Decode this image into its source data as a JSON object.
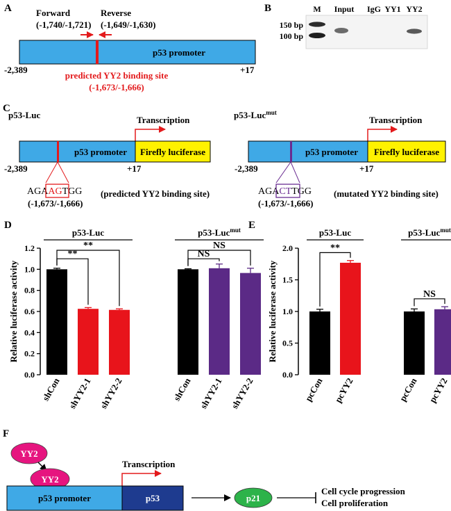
{
  "panels": {
    "A": {
      "letter": "A",
      "forward": "Forward",
      "forward_range": "(-1,740/-1,721)",
      "reverse": "Reverse",
      "reverse_range": "(-1,649/-1,630)",
      "promoter": "p53 promoter",
      "left_pos": "-2,389",
      "right_pos": "+17",
      "site_label": "predicted YY2 binding site",
      "site_range": "(-1,673/-1,666)"
    },
    "B": {
      "letter": "B",
      "ladder": [
        "150 bp",
        "100 bp"
      ],
      "lanes": [
        "M",
        "Input",
        "IgG",
        "YY1",
        "YY2"
      ]
    },
    "C": {
      "letter": "C",
      "left_title": "p53-Luc",
      "right_title_base": "p53-Luc",
      "right_title_sup": "mut",
      "transcription": "Transcription",
      "promoter": "p53 promoter",
      "luciferase": "Firefly luciferase",
      "left_pos": "-2,389",
      "right_pos": "+17",
      "seq_wt_pre": "AGA",
      "seq_wt_box": "AG",
      "seq_wt_post": "TGG",
      "seq_mut_pre": "AGA",
      "seq_mut_box": "CT",
      "seq_mut_post": "TGG",
      "range": "(-1,673/-1,666)",
      "note_wt": "(predicted YY2 binding site)",
      "note_mut": "(mutated YY2 binding site)"
    },
    "D": {
      "letter": "D"
    },
    "E": {
      "letter": "E"
    },
    "F": {
      "letter": "F",
      "yy2": "YY2",
      "transcription": "Transcription",
      "promoter": "p53 promoter",
      "p53": "p53",
      "p21": "p21",
      "outcome1": "Cell cycle progression",
      "outcome2": "Cell proliferation"
    }
  },
  "colors": {
    "promoter": "#3fa9e6",
    "luciferase": "#fff200",
    "site_red": "#e31a1c",
    "site_purple": "#6a2c91",
    "bar_black": "#000000",
    "bar_red": "#e8141b",
    "bar_purple": "#5b2a86",
    "yy2_oval": "#e6157f",
    "p53_box": "#1e3b8f",
    "p21_oval": "#2db34a"
  },
  "chart_data": [
    {
      "type": "bar",
      "ylabel": "Relative luciferase activity",
      "ylim": [
        0.0,
        1.2
      ],
      "yticks": [
        "0.0",
        "0.2",
        "0.4",
        "0.6",
        "0.8",
        "1.0",
        "1.2"
      ],
      "categories": [
        "shCon",
        "shYY2-1",
        "shYY2-2",
        "shCon",
        "shYY2-1",
        "shYY2-2"
      ],
      "values": [
        1.0,
        0.625,
        0.615,
        1.0,
        1.01,
        0.965
      ],
      "errors": [
        0.01,
        0.012,
        0.01,
        0.005,
        0.04,
        0.045
      ],
      "bar_colors": [
        "#000000",
        "#e8141b",
        "#e8141b",
        "#000000",
        "#5b2a86",
        "#5b2a86"
      ],
      "groups": [
        {
          "label_base": "p53-Luc",
          "label_sup": "",
          "span": [
            0,
            2
          ]
        },
        {
          "label_base": "p53-Luc",
          "label_sup": "mut",
          "span": [
            3,
            5
          ]
        }
      ],
      "significance": [
        {
          "from": 0,
          "to": 1,
          "label": "**",
          "y": 1.1
        },
        {
          "from": 0,
          "to": 2,
          "label": "**",
          "y": 1.18
        },
        {
          "from": 3,
          "to": 4,
          "label": "NS",
          "y": 1.1
        },
        {
          "from": 3,
          "to": 5,
          "label": "NS",
          "y": 1.18
        }
      ]
    },
    {
      "type": "bar",
      "ylabel": "Relative luciferase activity",
      "ylim": [
        0.0,
        2.0
      ],
      "yticks": [
        "0.0",
        "0.5",
        "1.0",
        "1.5",
        "2.0"
      ],
      "categories": [
        "pcCon",
        "pcYY2",
        "pcCon",
        "pcYY2"
      ],
      "values": [
        1.0,
        1.77,
        1.0,
        1.035
      ],
      "errors": [
        0.035,
        0.035,
        0.04,
        0.04
      ],
      "bar_colors": [
        "#000000",
        "#e8141b",
        "#000000",
        "#5b2a86"
      ],
      "groups": [
        {
          "label_base": "p53-Luc",
          "label_sup": "",
          "span": [
            0,
            1
          ]
        },
        {
          "label_base": "p53-Luc",
          "label_sup": "mut",
          "span": [
            2,
            3
          ]
        }
      ],
      "significance": [
        {
          "from": 0,
          "to": 1,
          "label": "**",
          "y": 1.93
        },
        {
          "from": 2,
          "to": 3,
          "label": "NS",
          "y": 1.2
        }
      ]
    }
  ]
}
